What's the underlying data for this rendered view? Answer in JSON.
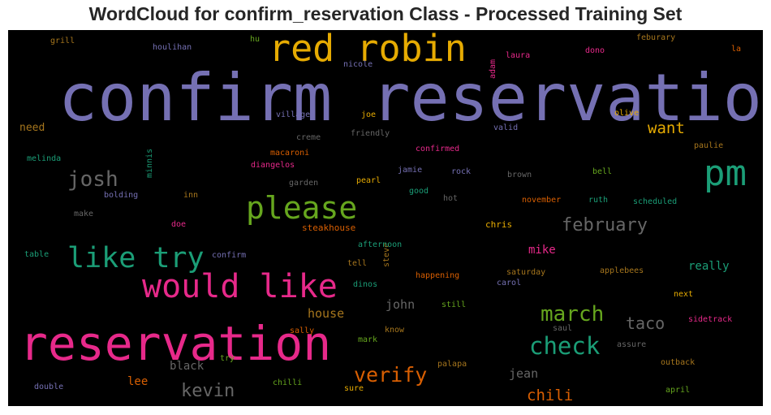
{
  "chart_data": {
    "type": "wordcloud",
    "title": "WordCloud for confirm_reservation Class - Processed Training Set",
    "background": "#000000",
    "colormap": "Dark2",
    "words": [
      {
        "text": "confirm reservation",
        "weight": 100,
        "color": "#7570b3"
      },
      {
        "text": "reservation",
        "weight": 72,
        "color": "#e7298a"
      },
      {
        "text": "red robin",
        "weight": 56,
        "color": "#e6ab02"
      },
      {
        "text": "pm",
        "weight": 55,
        "color": "#1b9e77"
      },
      {
        "text": "would like",
        "weight": 50,
        "color": "#e7298a"
      },
      {
        "text": "please",
        "weight": 47,
        "color": "#66a61e"
      },
      {
        "text": "like try",
        "weight": 44,
        "color": "#1b9e77"
      },
      {
        "text": "check",
        "weight": 36,
        "color": "#1b9e77"
      },
      {
        "text": "march",
        "weight": 33,
        "color": "#66a61e"
      },
      {
        "text": "josh",
        "weight": 32,
        "color": "#666666"
      },
      {
        "text": "verify",
        "weight": 31,
        "color": "#d95f02"
      },
      {
        "text": "kevin",
        "weight": 27,
        "color": "#666666"
      },
      {
        "text": "february",
        "weight": 27,
        "color": "#666666"
      },
      {
        "text": "taco",
        "weight": 25,
        "color": "#666666"
      },
      {
        "text": "chili",
        "weight": 24,
        "color": "#d95f02"
      },
      {
        "text": "want",
        "weight": 24,
        "color": "#e6ab02"
      },
      {
        "text": "jean",
        "weight": 19,
        "color": "#666666"
      },
      {
        "text": "john",
        "weight": 19,
        "color": "#666666"
      },
      {
        "text": "house",
        "weight": 19,
        "color": "#a6761d"
      },
      {
        "text": "black",
        "weight": 18,
        "color": "#666666"
      },
      {
        "text": "really",
        "weight": 18,
        "color": "#1b9e77"
      },
      {
        "text": "lee",
        "weight": 17,
        "color": "#d95f02"
      },
      {
        "text": "mike",
        "weight": 17,
        "color": "#e7298a"
      },
      {
        "text": "need",
        "weight": 16,
        "color": "#a6761d"
      },
      {
        "text": "chris",
        "weight": 14,
        "color": "#e6ab02"
      },
      {
        "text": "steakhouse",
        "weight": 14,
        "color": "#d95f02"
      },
      {
        "text": "confirm",
        "weight": 13,
        "color": "#7570b3"
      },
      {
        "text": "table",
        "weight": 12,
        "color": "#1b9e77"
      },
      {
        "text": "make",
        "weight": 12,
        "color": "#666666"
      },
      {
        "text": "doe",
        "weight": 12,
        "color": "#e7298a"
      },
      {
        "text": "bolding",
        "weight": 12,
        "color": "#7570b3"
      },
      {
        "text": "inn",
        "weight": 12,
        "color": "#a6761d"
      },
      {
        "text": "melinda",
        "weight": 12,
        "color": "#1b9e77"
      },
      {
        "text": "minnis",
        "weight": 12,
        "color": "#1b9e77",
        "vertical": true
      },
      {
        "text": "grill",
        "weight": 12,
        "color": "#a6761d"
      },
      {
        "text": "houlihan",
        "weight": 12,
        "color": "#7570b3"
      },
      {
        "text": "hu",
        "weight": 12,
        "color": "#66a61e"
      },
      {
        "text": "nicole",
        "weight": 12,
        "color": "#7570b3"
      },
      {
        "text": "adam",
        "weight": 12,
        "color": "#e7298a",
        "vertical": true
      },
      {
        "text": "laura",
        "weight": 12,
        "color": "#e7298a"
      },
      {
        "text": "dono",
        "weight": 12,
        "color": "#e7298a"
      },
      {
        "text": "feburary",
        "weight": 12,
        "color": "#a6761d"
      },
      {
        "text": "la",
        "weight": 12,
        "color": "#d95f02"
      },
      {
        "text": "village",
        "weight": 12,
        "color": "#7570b3"
      },
      {
        "text": "joe",
        "weight": 12,
        "color": "#e6ab02"
      },
      {
        "text": "creme",
        "weight": 12,
        "color": "#666666"
      },
      {
        "text": "friendly",
        "weight": 12,
        "color": "#666666"
      },
      {
        "text": "valid",
        "weight": 12,
        "color": "#7570b3"
      },
      {
        "text": "olive",
        "weight": 12,
        "color": "#e6ab02"
      },
      {
        "text": "macaroni",
        "weight": 12,
        "color": "#d95f02"
      },
      {
        "text": "diangelos",
        "weight": 12,
        "color": "#e7298a"
      },
      {
        "text": "confirmed",
        "weight": 12,
        "color": "#e7298a"
      },
      {
        "text": "paulie",
        "weight": 12,
        "color": "#a6761d"
      },
      {
        "text": "garden",
        "weight": 12,
        "color": "#666666"
      },
      {
        "text": "pearl",
        "weight": 12,
        "color": "#e6ab02"
      },
      {
        "text": "jamie",
        "weight": 12,
        "color": "#7570b3"
      },
      {
        "text": "rock",
        "weight": 12,
        "color": "#7570b3"
      },
      {
        "text": "brown",
        "weight": 12,
        "color": "#666666"
      },
      {
        "text": "bell",
        "weight": 12,
        "color": "#66a61e"
      },
      {
        "text": "good",
        "weight": 12,
        "color": "#1b9e77"
      },
      {
        "text": "hot",
        "weight": 12,
        "color": "#666666"
      },
      {
        "text": "november",
        "weight": 12,
        "color": "#d95f02"
      },
      {
        "text": "ruth",
        "weight": 12,
        "color": "#1b9e77"
      },
      {
        "text": "scheduled",
        "weight": 12,
        "color": "#1b9e77"
      },
      {
        "text": "steve",
        "weight": 12,
        "color": "#a6761d",
        "vertical": true
      },
      {
        "text": "afternoon",
        "weight": 12,
        "color": "#1b9e77"
      },
      {
        "text": "tell",
        "weight": 12,
        "color": "#a6761d"
      },
      {
        "text": "saturday",
        "weight": 12,
        "color": "#a6761d"
      },
      {
        "text": "applebees",
        "weight": 12,
        "color": "#a6761d"
      },
      {
        "text": "happening",
        "weight": 12,
        "color": "#d95f02"
      },
      {
        "text": "dinos",
        "weight": 12,
        "color": "#1b9e77"
      },
      {
        "text": "carol",
        "weight": 12,
        "color": "#7570b3"
      },
      {
        "text": "next",
        "weight": 12,
        "color": "#e6ab02"
      },
      {
        "text": "still",
        "weight": 12,
        "color": "#66a61e"
      },
      {
        "text": "sidetrack",
        "weight": 12,
        "color": "#e7298a"
      },
      {
        "text": "sally",
        "weight": 12,
        "color": "#d95f02"
      },
      {
        "text": "know",
        "weight": 12,
        "color": "#a6761d"
      },
      {
        "text": "saul",
        "weight": 12,
        "color": "#666666"
      },
      {
        "text": "mark",
        "weight": 12,
        "color": "#66a61e"
      },
      {
        "text": "assure",
        "weight": 12,
        "color": "#666666"
      },
      {
        "text": "try",
        "weight": 12,
        "color": "#66a61e"
      },
      {
        "text": "outback",
        "weight": 12,
        "color": "#a6761d"
      },
      {
        "text": "chilli",
        "weight": 12,
        "color": "#66a61e"
      },
      {
        "text": "palapa",
        "weight": 12,
        "color": "#a6761d"
      },
      {
        "text": "double",
        "weight": 12,
        "color": "#7570b3"
      },
      {
        "text": "sure",
        "weight": 12,
        "color": "#e6ab02"
      },
      {
        "text": "april",
        "weight": 12,
        "color": "#66a61e"
      }
    ]
  }
}
